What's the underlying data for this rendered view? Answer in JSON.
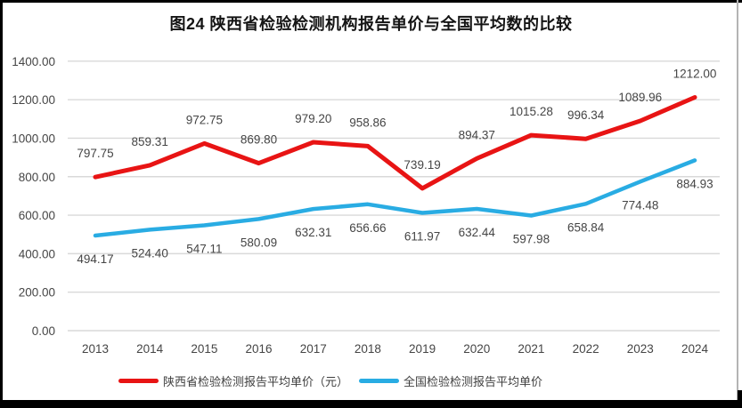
{
  "chart_data": {
    "type": "line",
    "title": "图24 陕西省检验检测机构报告单价与全国平均数的比较",
    "categories": [
      "2013",
      "2014",
      "2015",
      "2016",
      "2017",
      "2018",
      "2019",
      "2020",
      "2021",
      "2022",
      "2023",
      "2024"
    ],
    "series": [
      {
        "name": "陕西省检验检测报告平均单价（元）",
        "color": "#e81414",
        "label_position": "above",
        "values": [
          797.75,
          859.31,
          972.75,
          869.8,
          979.2,
          958.86,
          739.19,
          894.37,
          1015.28,
          996.34,
          1089.96,
          1212.0
        ]
      },
      {
        "name": "全国检验检测报告平均单价",
        "color": "#29ace3",
        "label_position": "below",
        "values": [
          494.17,
          524.4,
          547.11,
          580.09,
          632.31,
          656.66,
          611.97,
          632.44,
          597.98,
          658.84,
          774.48,
          884.93
        ]
      }
    ],
    "ylim": [
      0,
      1400
    ],
    "ytick_step": 200,
    "ytick_labels": [
      "0.00",
      "200.00",
      "400.00",
      "600.00",
      "800.00",
      "1000.00",
      "1200.00",
      "1400.00"
    ],
    "grid": "horizontal",
    "gridline_color": "#d9d9d9",
    "legend_position": "bottom",
    "data_labels": true,
    "label_color": "#454545"
  }
}
